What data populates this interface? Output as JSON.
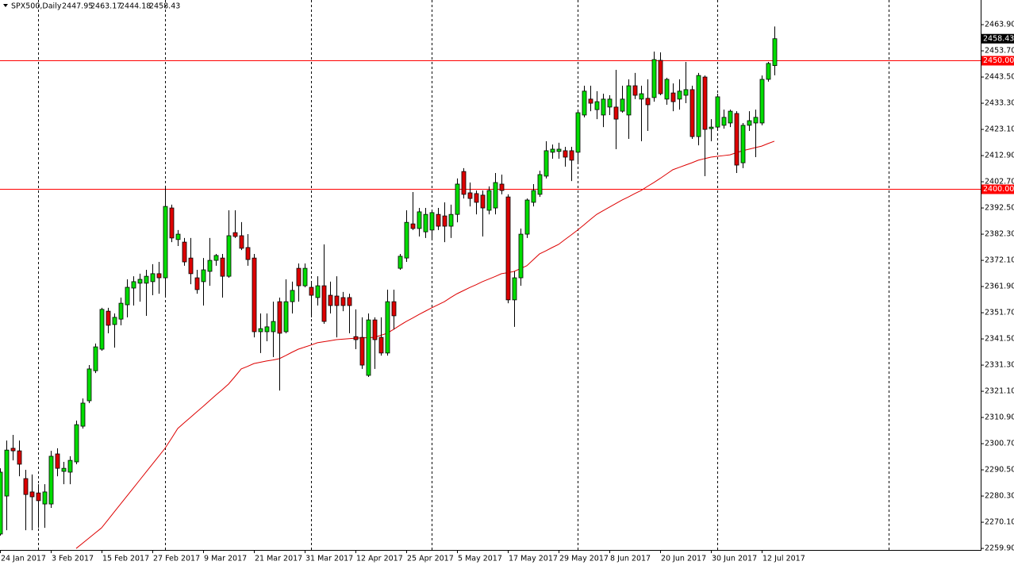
{
  "chart_data": {
    "type": "candlestick",
    "title": "SPX500,Daily",
    "categories": [
      "24 Jan 2017",
      null,
      null,
      null,
      null,
      null,
      null,
      null,
      "3 Feb 2017",
      null,
      null,
      null,
      null,
      null,
      null,
      null,
      "15 Feb 2017",
      null,
      null,
      null,
      null,
      null,
      null,
      null,
      "27 Feb 2017",
      null,
      null,
      null,
      null,
      null,
      null,
      null,
      "9 Mar 2017",
      null,
      null,
      null,
      null,
      null,
      null,
      null,
      "21 Mar 2017",
      null,
      null,
      null,
      null,
      null,
      null,
      null,
      "31 Mar 2017",
      null,
      null,
      null,
      null,
      null,
      null,
      null,
      "12 Apr 2017",
      null,
      null,
      null,
      null,
      null,
      null,
      null,
      "25 Apr 2017",
      null,
      null,
      null,
      null,
      null,
      null,
      null,
      "5 May 2017",
      null,
      null,
      null,
      null,
      null,
      null,
      null,
      "17 May 2017",
      null,
      null,
      null,
      null,
      null,
      null,
      null,
      "29 May 2017",
      null,
      null,
      null,
      null,
      null,
      null,
      null,
      "8 Jun 2017",
      null,
      null,
      null,
      null,
      null,
      null,
      null,
      "20 Jun 2017",
      null,
      null,
      null,
      null,
      null,
      null,
      null,
      "30 Jun 2017",
      null,
      null,
      null,
      null,
      null,
      null,
      null,
      "12 Jul 2017",
      null,
      null
    ],
    "open": [
      2265.5,
      2280.3,
      2298.9,
      2297.9,
      2287.1,
      2281.9,
      2281.5,
      2277.2,
      2277.2,
      2296.7,
      2289.9,
      2289.6,
      2293.6,
      2307.5,
      2317.4,
      2329.1,
      2337.5,
      2352.3,
      2347.1,
      2349.2,
      2354.8,
      2361.3,
      2363.2,
      2363.2,
      2363.8,
      2366.9,
      2365.3,
      2392.5,
      2380.2,
      2379.2,
      2373.0,
      2365.3,
      2363.8,
      2367.8,
      2372.1,
      2373.0,
      2365.9,
      2382.9,
      2381.7,
      2377.1,
      2373.0,
      2344.3,
      2344.3,
      2344.3,
      2356.0,
      2344.3,
      2356.0,
      2369.0,
      2362.2,
      2361.6,
      2357.6,
      2362.2,
      2358.5,
      2358.2,
      2357.6,
      2357.6,
      2342.4,
      2342.1,
      2327.3,
      2348.9,
      2342.1,
      2336.0,
      2356.0,
      2369.0,
      2373.0,
      2386.3,
      2384.5,
      2383.2,
      2383.9,
      2390.0,
      2389.4,
      2385.4,
      2390.0,
      2406.7,
      2398.4,
      2398.1,
      2397.5,
      2391.6,
      2392.5,
      2401.8,
      2396.8,
      2356.7,
      2365.3,
      2382.3,
      2394.7,
      2397.8,
      2404.9,
      2414.2,
      2414.5,
      2414.8,
      2414.8,
      2414.2,
      2428.7,
      2434.9,
      2430.8,
      2428.7,
      2431.8,
      2431.8,
      2430.2,
      2428.7,
      2440.1,
      2434.9,
      2435.2,
      2435.5,
      2450.0,
      2434.9,
      2437.3,
      2434.9,
      2436.4,
      2438.6,
      2420.3,
      2443.5,
      2423.4,
      2424.0,
      2424.7,
      2425.6,
      2429.3,
      2410.1,
      2424.7,
      2425.6,
      2425.6,
      2442.6,
      2447.95
    ],
    "high": [
      2291.1,
      2301.9,
      2304.1,
      2301.9,
      2290.5,
      2288.7,
      2284.9,
      2284.9,
      2297.9,
      2298.9,
      2293.6,
      2295.8,
      2309.7,
      2318.3,
      2331.3,
      2339.7,
      2353.6,
      2353.6,
      2351.4,
      2357.6,
      2364.7,
      2365.9,
      2366.9,
      2368.4,
      2370.6,
      2371.5,
      2400.9,
      2393.8,
      2383.9,
      2380.8,
      2380.8,
      2368.4,
      2373.0,
      2380.8,
      2374.6,
      2374.6,
      2391.6,
      2391.6,
      2387.0,
      2382.3,
      2374.6,
      2351.4,
      2351.4,
      2356.0,
      2357.6,
      2364.7,
      2363.8,
      2370.9,
      2370.9,
      2363.8,
      2365.9,
      2378.3,
      2363.8,
      2365.9,
      2359.8,
      2359.1,
      2353.0,
      2349.9,
      2351.4,
      2349.9,
      2349.9,
      2360.7,
      2360.7,
      2374.6,
      2391.6,
      2398.7,
      2392.5,
      2392.5,
      2391.6,
      2392.5,
      2394.7,
      2393.8,
      2404.0,
      2408.0,
      2402.4,
      2399.3,
      2399.3,
      2400.9,
      2406.1,
      2405.5,
      2397.8,
      2367.8,
      2384.5,
      2396.2,
      2401.8,
      2407.0,
      2418.5,
      2417.2,
      2417.9,
      2416.3,
      2416.3,
      2430.2,
      2440.1,
      2440.1,
      2438.0,
      2437.0,
      2436.4,
      2446.3,
      2440.1,
      2442.6,
      2445.1,
      2440.1,
      2442.6,
      2453.4,
      2453.1,
      2443.2,
      2441.0,
      2442.6,
      2449.4,
      2440.1,
      2445.1,
      2444.1,
      2427.1,
      2437.0,
      2430.8,
      2430.8,
      2430.2,
      2425.6,
      2430.2,
      2430.8,
      2444.1,
      2449.4,
      2463.17
    ],
    "low": [
      2264.9,
      2267.0,
      2294.2,
      2288.0,
      2267.0,
      2267.0,
      2267.9,
      2267.9,
      2275.7,
      2288.0,
      2284.9,
      2284.9,
      2292.7,
      2306.6,
      2316.5,
      2328.2,
      2336.9,
      2343.7,
      2338.1,
      2346.8,
      2349.9,
      2354.5,
      2356.0,
      2350.5,
      2358.5,
      2359.1,
      2358.5,
      2379.2,
      2377.7,
      2370.0,
      2362.8,
      2359.1,
      2354.5,
      2362.2,
      2370.0,
      2357.6,
      2365.3,
      2380.8,
      2376.1,
      2370.0,
      2342.1,
      2336.0,
      2340.6,
      2334.4,
      2321.4,
      2343.7,
      2351.4,
      2356.0,
      2361.6,
      2349.9,
      2354.5,
      2347.4,
      2351.4,
      2342.1,
      2352.3,
      2343.7,
      2337.5,
      2329.8,
      2326.7,
      2329.8,
      2335.0,
      2335.0,
      2345.2,
      2368.4,
      2371.5,
      2383.9,
      2381.4,
      2380.8,
      2380.2,
      2383.9,
      2379.2,
      2380.8,
      2386.9,
      2396.2,
      2393.1,
      2390.0,
      2381.4,
      2390.0,
      2390.0,
      2397.8,
      2355.4,
      2346.2,
      2362.2,
      2380.8,
      2393.1,
      2396.8,
      2404.0,
      2411.7,
      2411.7,
      2408.6,
      2403.0,
      2410.1,
      2427.8,
      2430.2,
      2427.1,
      2424.0,
      2428.7,
      2415.4,
      2429.6,
      2419.4,
      2434.9,
      2418.5,
      2422.5,
      2433.9,
      2436.4,
      2432.7,
      2430.2,
      2430.8,
      2433.3,
      2419.4,
      2416.9,
      2404.9,
      2418.5,
      2422.5,
      2423.4,
      2424.0,
      2406.1,
      2408.0,
      2422.5,
      2412.3,
      2424.7,
      2441.7,
      2444.18
    ],
    "close": [
      2289.6,
      2298.2,
      2297.9,
      2292.7,
      2280.9,
      2280.0,
      2278.5,
      2281.9,
      2295.8,
      2291.1,
      2291.1,
      2294.2,
      2308.1,
      2316.5,
      2329.8,
      2338.4,
      2353.0,
      2346.8,
      2349.9,
      2355.4,
      2361.6,
      2363.8,
      2364.7,
      2365.9,
      2366.9,
      2365.3,
      2393.1,
      2380.8,
      2382.3,
      2371.5,
      2366.9,
      2360.7,
      2368.4,
      2372.1,
      2374.0,
      2365.9,
      2381.7,
      2381.4,
      2376.8,
      2372.4,
      2344.3,
      2345.5,
      2346.2,
      2348.3,
      2343.7,
      2356.0,
      2360.4,
      2362.2,
      2369.0,
      2358.5,
      2362.2,
      2348.3,
      2354.5,
      2354.5,
      2354.5,
      2354.5,
      2341.2,
      2331.3,
      2348.9,
      2341.2,
      2336.0,
      2356.0,
      2350.5,
      2373.7,
      2386.9,
      2384.5,
      2391.0,
      2390.0,
      2390.7,
      2385.4,
      2385.4,
      2390.0,
      2401.8,
      2397.8,
      2396.2,
      2394.7,
      2392.5,
      2399.3,
      2402.4,
      2399.3,
      2356.7,
      2365.3,
      2382.3,
      2395.6,
      2399.3,
      2405.5,
      2414.8,
      2415.4,
      2415.4,
      2412.3,
      2411.1,
      2429.6,
      2438.0,
      2433.3,
      2433.9,
      2434.9,
      2434.9,
      2427.1,
      2434.9,
      2440.1,
      2436.4,
      2437.0,
      2432.7,
      2450.3,
      2437.0,
      2442.6,
      2433.9,
      2438.0,
      2438.6,
      2420.3,
      2444.1,
      2423.1,
      2424.0,
      2435.8,
      2427.8,
      2430.2,
      2409.2,
      2424.7,
      2426.5,
      2427.8,
      2442.6,
      2448.8,
      2458.43
    ],
    "up_color": "#00dd00",
    "down_color": "#dd0000",
    "moving_average": {
      "color": "#dd0000",
      "values": [
        null,
        null,
        null,
        null,
        null,
        null,
        null,
        null,
        null,
        null,
        null,
        null,
        2259.9,
        2261.9,
        2263.9,
        2265.9,
        2267.9,
        2271.0,
        2274.1,
        2277.2,
        2280.3,
        2283.4,
        2286.5,
        2289.6,
        2292.7,
        2295.8,
        2298.9,
        2302.7,
        2306.6,
        2308.8,
        2310.9,
        2313.1,
        2315.2,
        2317.4,
        2319.6,
        2321.7,
        2323.9,
        2326.8,
        2329.8,
        2330.8,
        2331.9,
        2332.4,
        2332.9,
        2333.3,
        2333.8,
        2335.0,
        2336.3,
        2337.5,
        2338.3,
        2339.1,
        2340.0,
        2340.4,
        2340.8,
        2341.2,
        2341.4,
        2341.6,
        2341.8,
        2341.9,
        2342.0,
        2342.1,
        2342.9,
        2343.7,
        2345.2,
        2346.8,
        2348.3,
        2349.6,
        2351.0,
        2352.3,
        2353.6,
        2354.8,
        2356.0,
        2357.6,
        2359.1,
        2360.3,
        2361.5,
        2362.6,
        2363.8,
        2364.8,
        2365.8,
        2366.9,
        2367.3,
        2367.8,
        2368.9,
        2370.0,
        2372.3,
        2374.6,
        2375.8,
        2377.1,
        2378.3,
        2380.2,
        2382.0,
        2383.9,
        2385.9,
        2388.0,
        2390.0,
        2391.4,
        2392.8,
        2394.2,
        2395.6,
        2396.8,
        2398.1,
        2399.3,
        2400.9,
        2402.4,
        2404.0,
        2405.7,
        2407.4,
        2408.3,
        2409.2,
        2410.1,
        2411.1,
        2411.7,
        2412.3,
        2412.6,
        2412.9,
        2413.2,
        2414.0,
        2414.8,
        2415.4,
        2416.0,
        2416.6,
        2417.6,
        2418.5
      ]
    },
    "ylim": [
      2259.3,
      2473.5
    ],
    "yticks": [
      {
        "value": 2463.9,
        "label": "2463.90"
      },
      {
        "value": 2453.7,
        "label": "2453.70"
      },
      {
        "value": 2443.5,
        "label": "2443.50"
      },
      {
        "value": 2433.3,
        "label": "2433.30"
      },
      {
        "value": 2423.1,
        "label": "2423.10"
      },
      {
        "value": 2412.9,
        "label": "2412.90"
      },
      {
        "value": 2402.7,
        "label": "2402.70"
      },
      {
        "value": 2392.5,
        "label": "2392.50"
      },
      {
        "value": 2382.3,
        "label": "2382.30"
      },
      {
        "value": 2372.1,
        "label": "2372.10"
      },
      {
        "value": 2361.9,
        "label": "2361.90"
      },
      {
        "value": 2351.7,
        "label": "2351.70"
      },
      {
        "value": 2341.5,
        "label": "2341.50"
      },
      {
        "value": 2331.3,
        "label": "2331.30"
      },
      {
        "value": 2321.1,
        "label": "2321.10"
      },
      {
        "value": 2310.9,
        "label": "2310.90"
      },
      {
        "value": 2300.7,
        "label": "2300.70"
      },
      {
        "value": 2290.5,
        "label": "2290.50"
      },
      {
        "value": 2280.3,
        "label": "2280.30"
      },
      {
        "value": 2270.1,
        "label": "2270.10"
      },
      {
        "value": 2259.9,
        "label": "2259.90"
      }
    ],
    "hlines": [
      {
        "value": 2450,
        "label": "2450.00"
      },
      {
        "value": 2400,
        "label": "2400.00"
      }
    ],
    "hline_color": "#ff0000"
  }
}
